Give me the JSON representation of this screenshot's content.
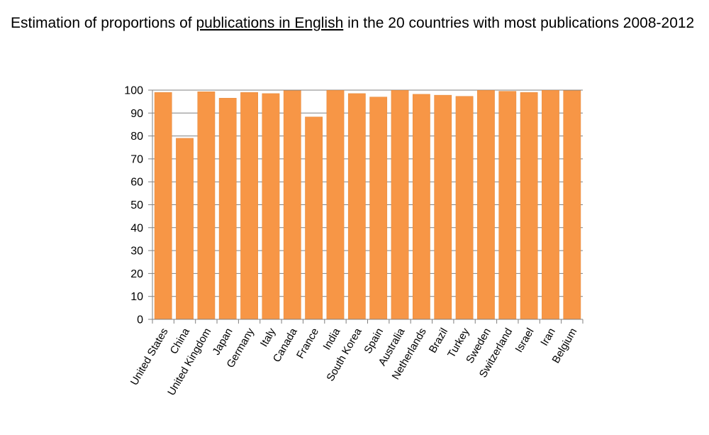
{
  "title": {
    "prefix": "Estimation of proportions of ",
    "underlined": "publications in English",
    "suffix": " in the 20 countries with most publications 2008-2012"
  },
  "colors": {
    "bar": "#f79646",
    "bar_stroke": "#e48a3c",
    "axis": "#808080",
    "grid": "#808080"
  },
  "chart_data": {
    "type": "bar",
    "title": "Estimation of proportions of publications in English in the 20 countries with most publications 2008-2012",
    "xlabel": "",
    "ylabel": "",
    "ylim": [
      0,
      100
    ],
    "yticks": [
      0,
      10,
      20,
      30,
      40,
      50,
      60,
      70,
      80,
      90,
      100
    ],
    "grid": true,
    "legend": "none",
    "categories": [
      "United States",
      "China",
      "United Kingdom",
      "Japan",
      "Germany",
      "Italy",
      "Canada",
      "France",
      "India",
      "South Korea",
      "Spain",
      "Australia",
      "Netherlands",
      "Brazil",
      "Turkey",
      "Sweden",
      "Switzerland",
      "Israel",
      "Iran",
      "Belgium"
    ],
    "values": [
      99,
      79,
      99.3,
      96.5,
      99,
      98.5,
      99.8,
      88.3,
      99.9,
      98.5,
      97,
      99.9,
      98.2,
      97.8,
      97.3,
      99.9,
      99.5,
      99,
      99.9,
      99.8
    ]
  }
}
